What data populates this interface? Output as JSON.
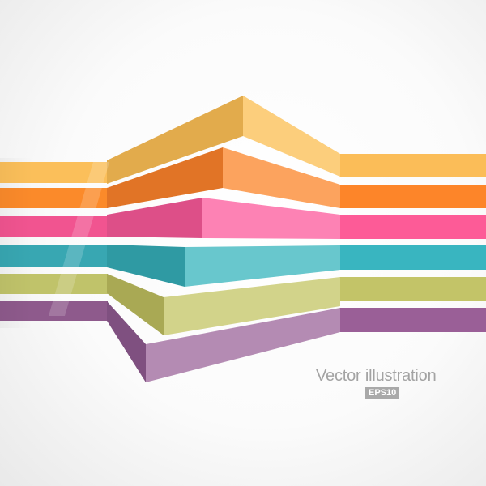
{
  "caption": "Vector illustration",
  "badge": "EPS10",
  "colors": {
    "yellow": "#fbbf5a",
    "orange": "#fb8a2a",
    "pink": "#fc5d97",
    "teal": "#39b5c0",
    "green": "#c3c468",
    "purple": "#9a5f97"
  }
}
